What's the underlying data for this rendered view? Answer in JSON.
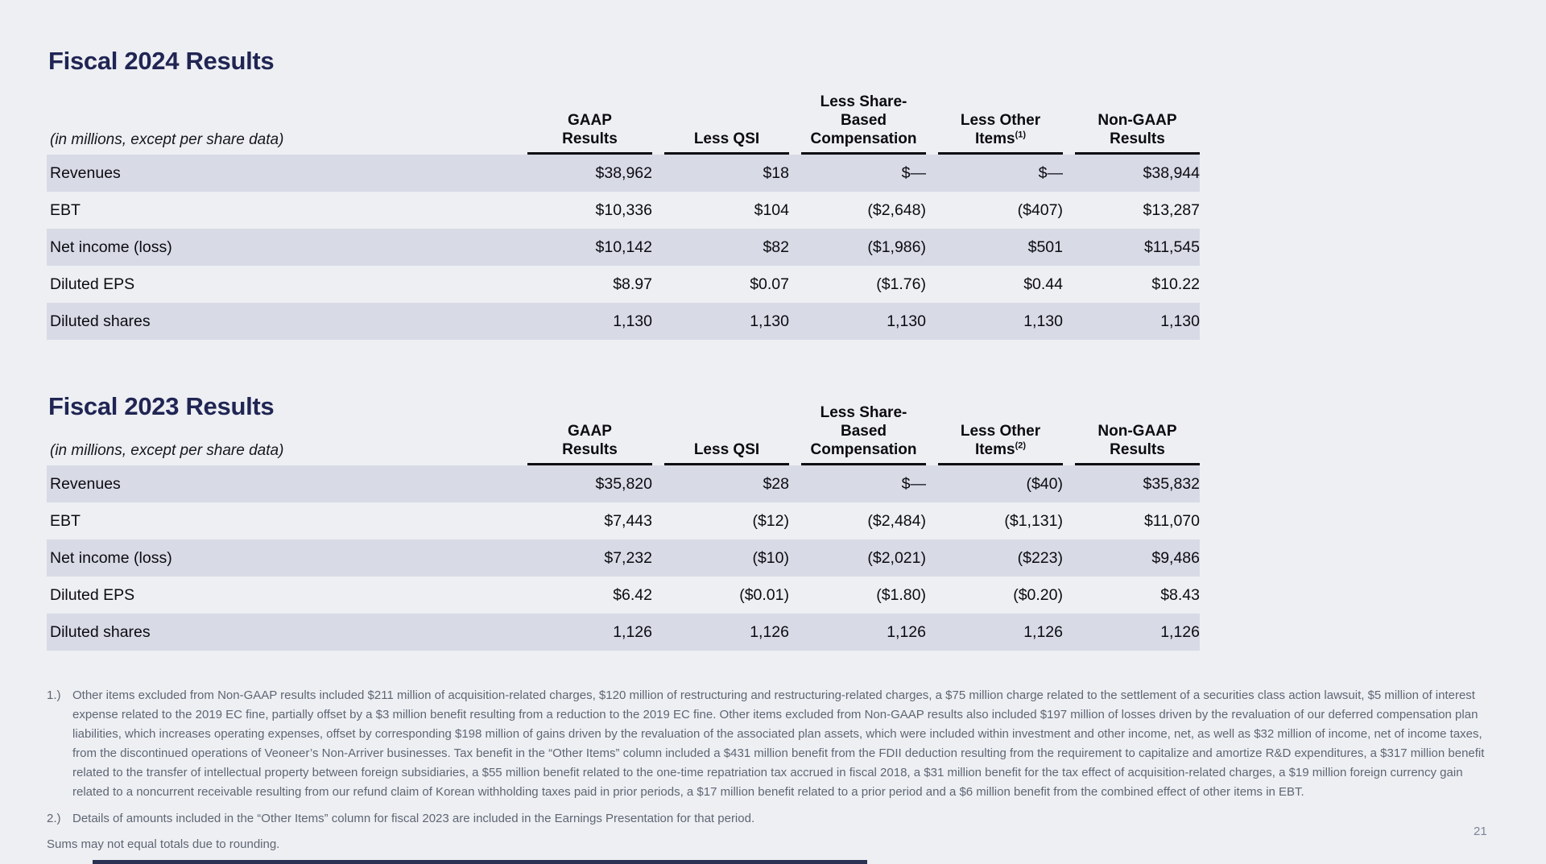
{
  "page": {
    "page_number": "21",
    "rounding_note": "Sums may not equal totals due to rounding.",
    "colors": {
      "background": "#edeff3",
      "row_shade": "#d8dae6",
      "title": "#202553",
      "footnote_text": "#5f6673",
      "accent_bar": "#2b3152",
      "header_underline": "#0c0c12"
    }
  },
  "tables": [
    {
      "title": "Fiscal 2024 Results",
      "subtitle": "(in millions, except per share data)",
      "columns": [
        {
          "lines": [
            "GAAP",
            "Results"
          ]
        },
        {
          "lines": [
            "Less QSI"
          ]
        },
        {
          "lines": [
            "Less Share-",
            "Based",
            "Compensation"
          ]
        },
        {
          "lines": [
            "Less Other",
            "Items"
          ],
          "sup": "(1)"
        },
        {
          "lines": [
            "Non-GAAP",
            "Results"
          ]
        }
      ],
      "rows": [
        {
          "label": "Revenues",
          "values": [
            "$38,962",
            "$18",
            "$—",
            "$—",
            "$38,944"
          ]
        },
        {
          "label": "EBT",
          "values": [
            "$10,336",
            "$104",
            "($2,648)",
            "($407)",
            "$13,287"
          ]
        },
        {
          "label": "Net income (loss)",
          "values": [
            "$10,142",
            "$82",
            "($1,986)",
            "$501",
            "$11,545"
          ]
        },
        {
          "label": "Diluted EPS",
          "values": [
            "$8.97",
            "$0.07",
            "($1.76)",
            "$0.44",
            "$10.22"
          ]
        },
        {
          "label": "Diluted shares",
          "values": [
            "1,130",
            "1,130",
            "1,130",
            "1,130",
            "1,130"
          ]
        }
      ]
    },
    {
      "title": "Fiscal 2023 Results",
      "subtitle": "(in millions, except per share data)",
      "columns": [
        {
          "lines": [
            "GAAP",
            "Results"
          ]
        },
        {
          "lines": [
            "Less QSI"
          ]
        },
        {
          "lines": [
            "Less Share-",
            "Based",
            "Compensation"
          ]
        },
        {
          "lines": [
            "Less Other",
            "Items"
          ],
          "sup": "(2)"
        },
        {
          "lines": [
            "Non-GAAP",
            "Results"
          ]
        }
      ],
      "rows": [
        {
          "label": "Revenues",
          "values": [
            "$35,820",
            "$28",
            "$—",
            "($40)",
            "$35,832"
          ]
        },
        {
          "label": "EBT",
          "values": [
            "$7,443",
            "($12)",
            "($2,484)",
            "($1,131)",
            "$11,070"
          ]
        },
        {
          "label": "Net income (loss)",
          "values": [
            "$7,232",
            "($10)",
            "($2,021)",
            "($223)",
            "$9,486"
          ]
        },
        {
          "label": "Diluted EPS",
          "values": [
            "$6.42",
            "($0.01)",
            "($1.80)",
            "($0.20)",
            "$8.43"
          ]
        },
        {
          "label": "Diluted shares",
          "values": [
            "1,126",
            "1,126",
            "1,126",
            "1,126",
            "1,126"
          ]
        }
      ]
    }
  ],
  "footnotes": [
    {
      "num": "1.)",
      "text": "Other items excluded from Non-GAAP results included $211 million of acquisition-related charges, $120 million of restructuring and restructuring-related charges, a $75 million charge related to the settlement of a securities class action lawsuit, $5 million of interest expense related to the 2019 EC fine, partially offset by a $3 million benefit resulting from a reduction to the 2019 EC fine. Other items excluded from Non-GAAP results also included $197 million of losses driven by the revaluation of our deferred compensation plan liabilities, which increases operating expenses, offset by corresponding $198 million of gains driven by the revaluation of the associated plan assets, which were included within investment and other income, net, as well as $32 million of income, net of income taxes, from the discontinued operations of Veoneer’s Non-Arriver businesses. Tax benefit in the “Other Items” column included a $431 million benefit from the FDII deduction resulting from the requirement to capitalize and amortize R&D expenditures, a $317 million benefit related to the transfer of intellectual property between foreign subsidiaries, a $55 million benefit related to the one-time repatriation tax accrued in fiscal 2018, a $31 million benefit for the tax effect of acquisition-related charges, a $19 million foreign currency gain related to a noncurrent receivable resulting from our refund claim of Korean withholding taxes paid in prior periods, a $17 million benefit related to a prior period and a $6 million benefit from the combined effect of other items in EBT."
    },
    {
      "num": "2.)",
      "text": "Details of amounts included in the “Other Items” column for fiscal 2023 are included in the Earnings Presentation for that period."
    }
  ]
}
